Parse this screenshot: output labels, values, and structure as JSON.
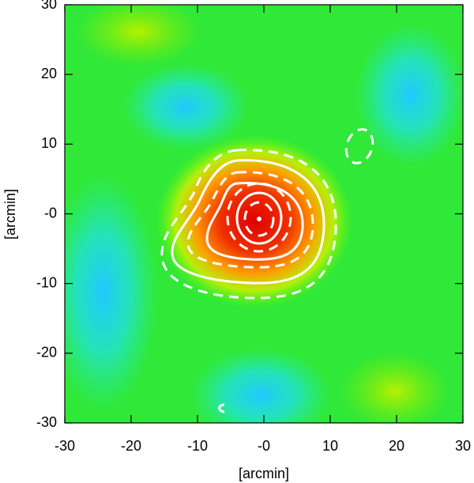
{
  "chart_data": {
    "type": "image",
    "xlabel": "[arcmin]",
    "ylabel": "[arcmin]",
    "xlim": [
      -30,
      30
    ],
    "ylim": [
      -30,
      30
    ],
    "xticks": [
      -30,
      -20,
      -10,
      {
        "value": 0,
        "label": "-0"
      },
      10,
      20,
      30
    ],
    "yticks": [
      -30,
      -20,
      -10,
      {
        "value": 0,
        "label": "-0"
      },
      10,
      20,
      30
    ]
  }
}
